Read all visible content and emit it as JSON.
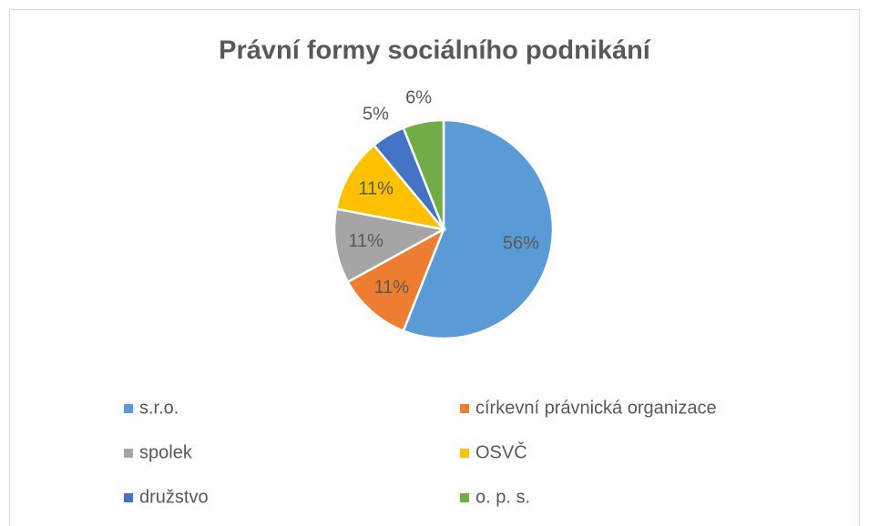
{
  "chart_data": {
    "type": "pie",
    "title": "Právní formy sociálního podnikání",
    "categories": [
      "s.r.o.",
      "církevní právnická organizace",
      "spolek",
      "OSVČ",
      "družstvo",
      "o. p. s."
    ],
    "values": [
      56,
      11,
      11,
      11,
      5,
      6
    ],
    "value_labels": [
      "56%",
      "11%",
      "11%",
      "11%",
      "5%",
      "6%"
    ],
    "colors": [
      "#5b9bd5",
      "#ed7d31",
      "#a5a5a5",
      "#ffc000",
      "#4472c4",
      "#70ad47"
    ],
    "legend": "bottom"
  }
}
